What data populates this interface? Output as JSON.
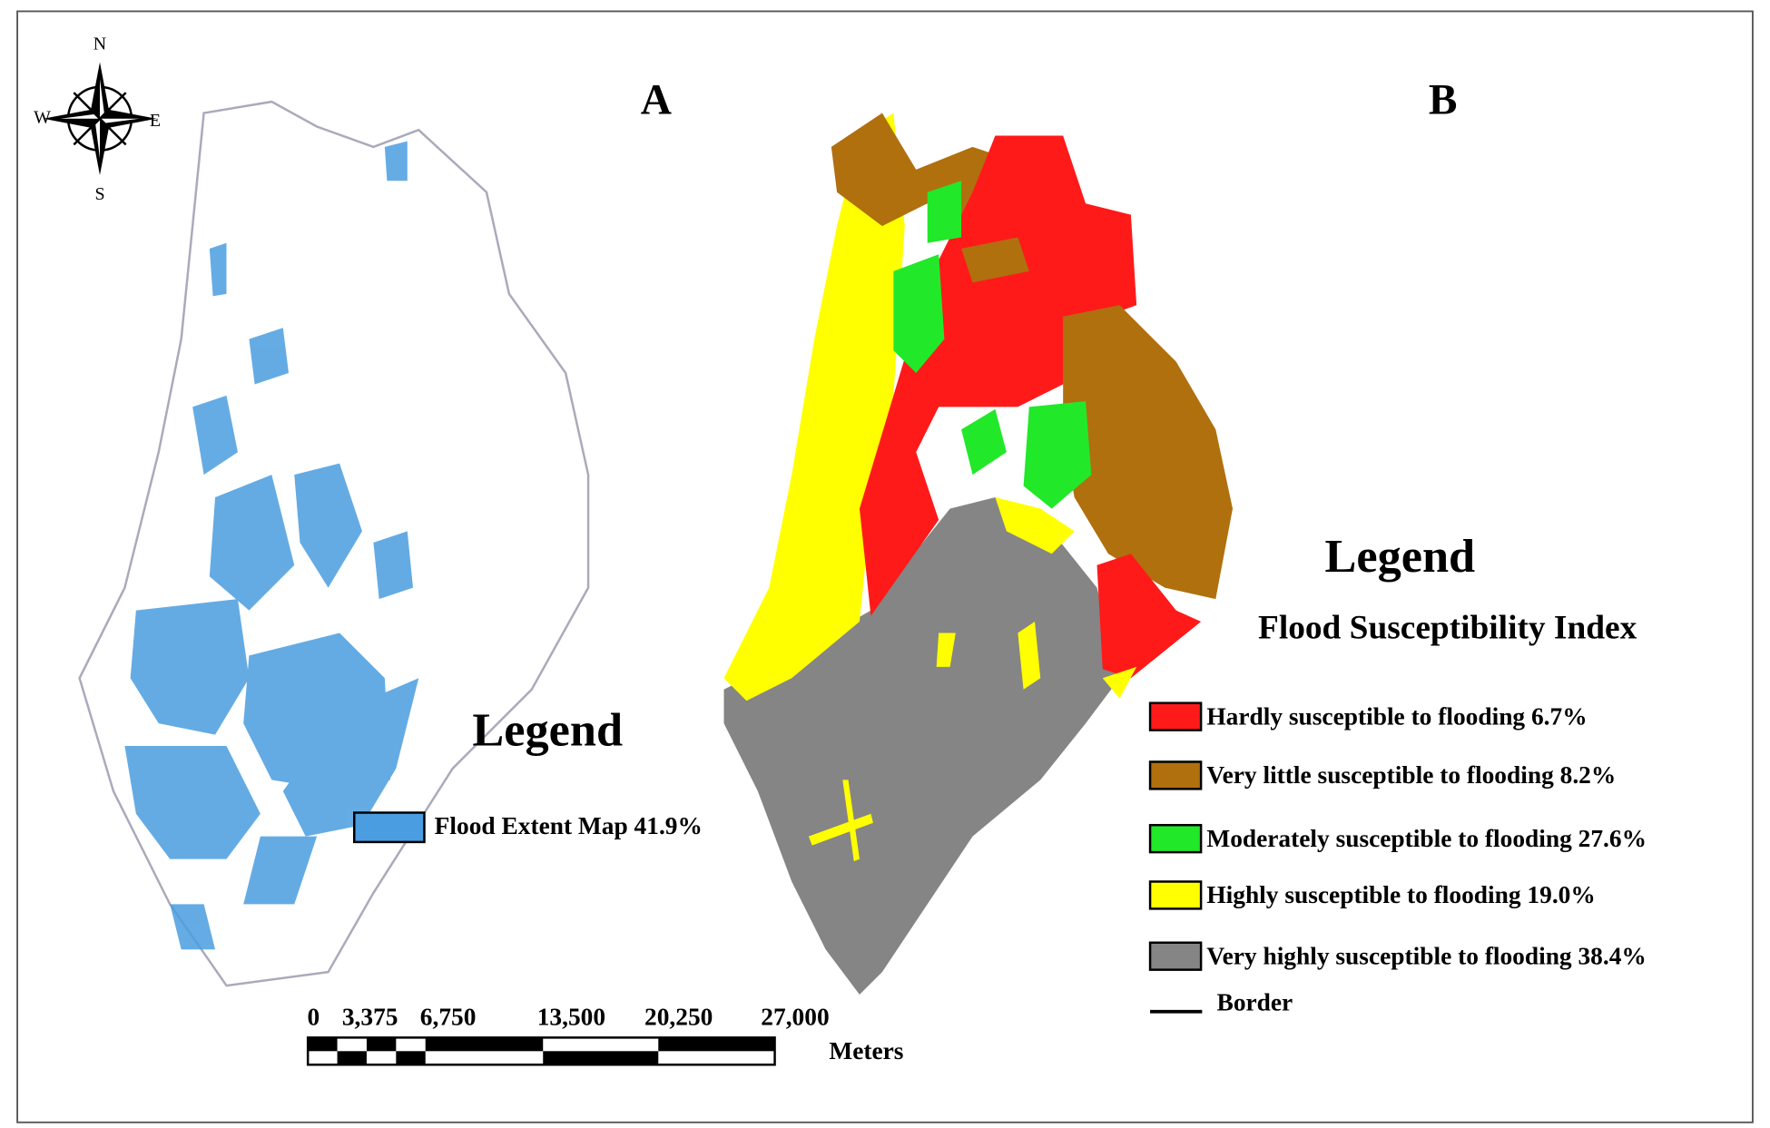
{
  "compass": {
    "north": "N",
    "south": "S",
    "west": "W",
    "east": "E"
  },
  "panels": [
    {
      "label": "A",
      "legend": {
        "title": "Legend",
        "items": [
          {
            "label": "Flood Extent Map 41.9%",
            "color": "#4a9de0"
          }
        ]
      }
    },
    {
      "label": "B",
      "legend": {
        "title": "Legend",
        "subtitle": "Flood Susceptibility Index",
        "items": [
          {
            "label": "Hardly susceptible to flooding 6.7%",
            "color": "#ff1a1a"
          },
          {
            "label": "Very  little   susceptible to flooding 8.2%",
            "color": "#b0700e"
          },
          {
            "label": "Moderately susceptible to flooding 27.6%",
            "color": "#22e82a"
          },
          {
            "label": "Highly susceptible to flooding 19.0%",
            "color": "#ffff00"
          },
          {
            "label": "Very highly susceptible to flooding 38.4%",
            "color": "#858585"
          }
        ],
        "border": "Border"
      }
    }
  ],
  "scale_bar": {
    "labels": [
      "0",
      "3,375",
      "6,750",
      "13,500",
      "20,250",
      "27,000"
    ],
    "unit": "Meters"
  }
}
